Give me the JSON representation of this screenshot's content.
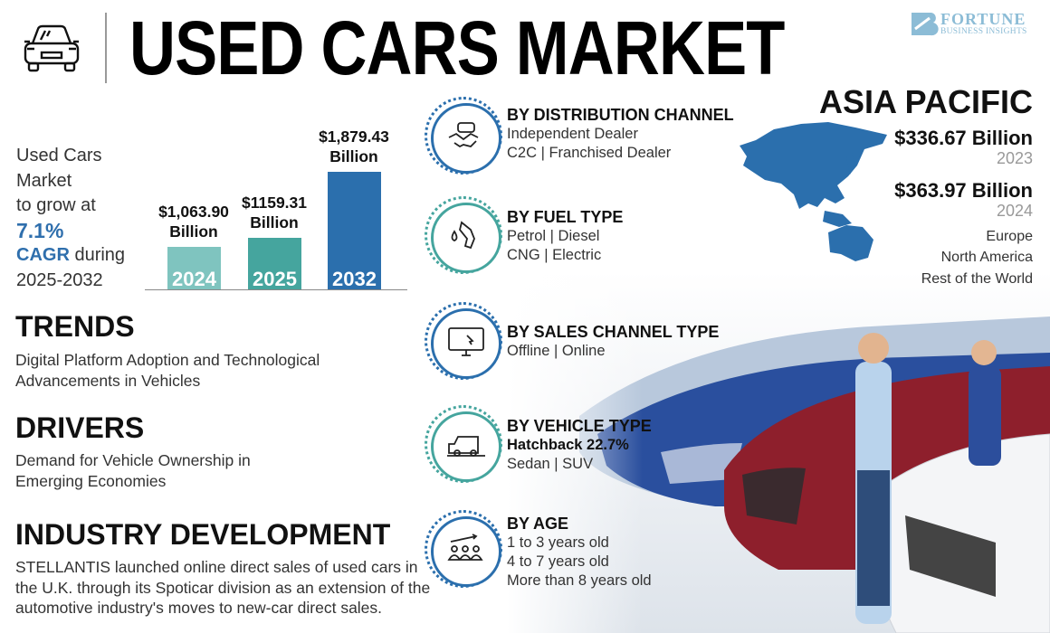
{
  "header": {
    "title": "USED CARS MARKET",
    "icon": "car-front-icon",
    "logo": {
      "line1": "FORTUNE",
      "line2": "BUSINESS INSIGHTS"
    }
  },
  "cagr": {
    "line1": "Used Cars",
    "line2": "Market",
    "line3": "to grow at",
    "rate": "7.1%",
    "cagr_label": "CAGR",
    "during": " during",
    "period": "2025-2032"
  },
  "chart_data": {
    "type": "bar",
    "categories": [
      "2024",
      "2025",
      "2032"
    ],
    "values": [
      1063.9,
      1159.31,
      1879.43
    ],
    "data_labels": [
      "$1,063.90\nBillion",
      "$1159.31\nBillion",
      "$1,879.43\nBillion"
    ],
    "colors": [
      "#7fc4bf",
      "#45a59e",
      "#2b6fad"
    ],
    "ylim": [
      0,
      2100
    ],
    "grid": false
  },
  "trends": {
    "heading": "TRENDS",
    "text": "Digital Platform Adoption and Technological Advancements in Vehicles"
  },
  "drivers": {
    "heading": "DRIVERS",
    "text": "Demand for Vehicle Ownership in Emerging Economies"
  },
  "industry": {
    "heading": "INDUSTRY DEVELOPMENT",
    "text": "STELLANTIS launched online direct sales of used cars in the U.K. through its Spoticar division as an extension of the automotive industry's moves to new-car direct sales."
  },
  "segments": [
    {
      "heading": "BY DISTRIBUTION CHANNEL",
      "lines": [
        "Independent Dealer",
        "C2C  |  Franchised Dealer"
      ],
      "icon": "handshake-car-icon",
      "color": "#2b6fad"
    },
    {
      "heading": "BY FUEL TYPE",
      "lines": [
        "Petrol  |  Diesel",
        "CNG  |  Electric"
      ],
      "icon": "fuel-nozzle-icon",
      "color": "#45a59e"
    },
    {
      "heading": "BY SALES CHANNEL TYPE",
      "lines": [
        "Offline  |  Online"
      ],
      "icon": "monitor-click-icon",
      "color": "#2b6fad"
    },
    {
      "heading": "BY VEHICLE TYPE",
      "highlight": "Hatchback 22.7%",
      "lines": [
        "Sedan  |  SUV"
      ],
      "icon": "suv-icon",
      "color": "#45a59e"
    },
    {
      "heading": "BY AGE",
      "lines": [
        "1 to 3 years old",
        "4 to 7 years old",
        "More than 8 years old"
      ],
      "icon": "people-growth-icon",
      "color": "#2b6fad"
    }
  ],
  "region": {
    "name": "ASIA PACIFIC",
    "value1": "$336.67 Billion",
    "year1": "2023",
    "value2": "$363.97 Billion",
    "year2": "2024",
    "others": [
      "Europe",
      "North America",
      "Rest of the World"
    ],
    "map_color": "#2b6fad"
  }
}
